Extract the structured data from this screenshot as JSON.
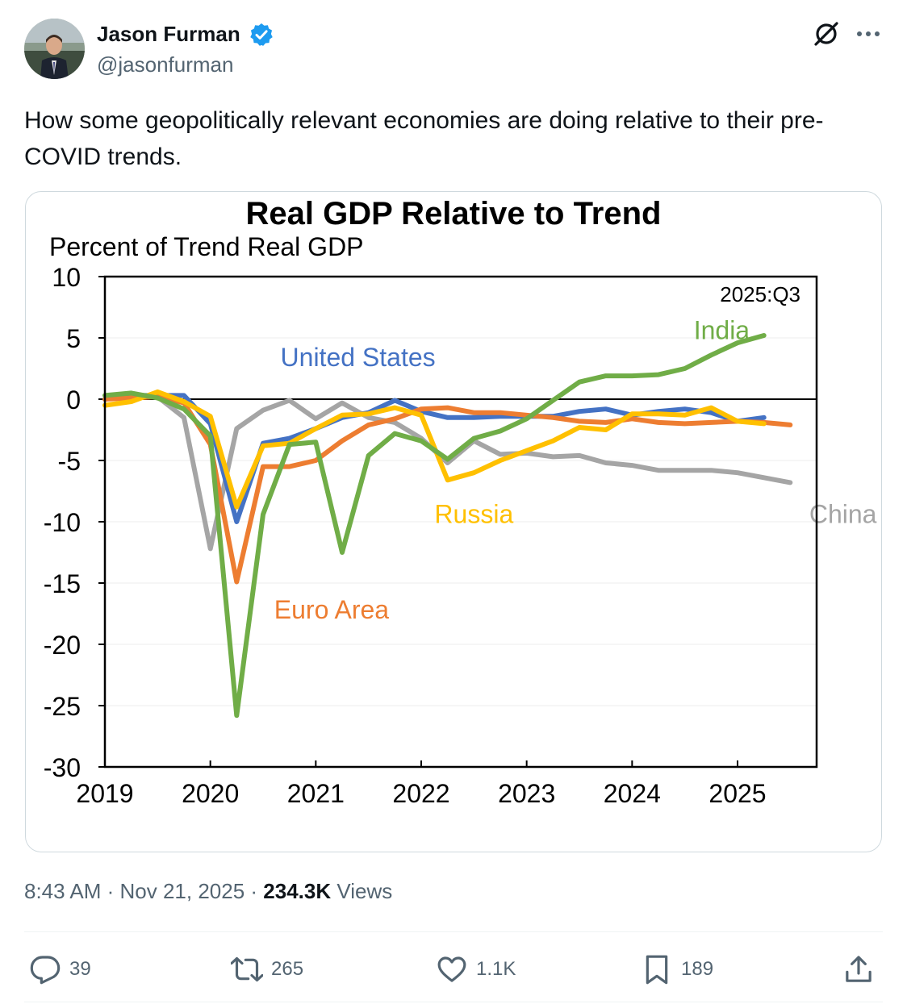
{
  "author": {
    "name": "Jason Furman",
    "handle": "@jasonfurman",
    "verified": true,
    "avatar_icon": "avatar-photo"
  },
  "header_icons": [
    "grok-icon",
    "more-icon"
  ],
  "tweet": {
    "text": "How some geopolitically relevant economies are doing relative to their pre-COVID trends."
  },
  "meta": {
    "time": "8:43 AM",
    "sep1": " · ",
    "date": "Nov 21, 2025",
    "sep2": " · ",
    "views_count": "234.3K",
    "views_label": " Views"
  },
  "actions": {
    "replies": "39",
    "reposts": "265",
    "likes": "1.1K",
    "bookmarks": "189"
  },
  "colors": {
    "link_blue": "#1d9bf0",
    "secondary_text": "#536471",
    "us": "#4472c4",
    "euro_area": "#ed7d31",
    "china": "#a5a5a5",
    "russia": "#ffc000",
    "india": "#70ad47"
  },
  "chart_data": {
    "type": "line",
    "title": "Real GDP Relative to Trend",
    "ylabel": "Percent of Trend Real GDP",
    "corner_label": "2025:Q3",
    "xlim": [
      2019,
      2025.75
    ],
    "ylim": [
      -30,
      10
    ],
    "yticks": [
      "10",
      "5",
      "0",
      "-5",
      "-10",
      "-15",
      "-20",
      "-25",
      "-30"
    ],
    "ytick_values": [
      10,
      5,
      0,
      -5,
      -10,
      -15,
      -20,
      -25,
      -30
    ],
    "xticks": [
      "2019",
      "2020",
      "2021",
      "2022",
      "2023",
      "2024",
      "2025"
    ],
    "xtick_values": [
      2019,
      2020,
      2021,
      2022,
      2023,
      2024,
      2025
    ],
    "grid": "horizontal",
    "series": [
      {
        "name": "China",
        "color": "#a5a5a5",
        "label_x": 2026.0,
        "label_y": -10.1,
        "x": [
          2019,
          2019.25,
          2019.5,
          2019.75,
          2020,
          2020.25,
          2020.5,
          2020.75,
          2021,
          2021.25,
          2021.5,
          2021.75,
          2022,
          2022.25,
          2022.5,
          2022.75,
          2023,
          2023.25,
          2023.5,
          2023.75,
          2024,
          2024.25,
          2024.5,
          2024.75,
          2025,
          2025.25,
          2025.5
        ],
        "values": [
          0,
          0.4,
          0.2,
          -1.5,
          -12.2,
          -2.4,
          -0.9,
          -0.1,
          -1.6,
          -0.3,
          -1.5,
          -1.9,
          -3.2,
          -5.2,
          -3.4,
          -4.5,
          -4.4,
          -4.7,
          -4.6,
          -5.2,
          -5.4,
          -5.8,
          -5.8,
          -5.8,
          -6.0,
          -6.4,
          -6.8
        ]
      },
      {
        "name": "United States",
        "color": "#4472c4",
        "label_x": 2021.4,
        "label_y": 2.7,
        "x": [
          2019,
          2019.25,
          2019.5,
          2019.75,
          2020,
          2020.25,
          2020.5,
          2020.75,
          2021,
          2021.25,
          2021.5,
          2021.75,
          2022,
          2022.25,
          2022.5,
          2022.75,
          2023,
          2023.25,
          2023.5,
          2023.75,
          2024,
          2024.25,
          2024.5,
          2024.75,
          2025,
          2025.25
        ],
        "values": [
          0,
          0.3,
          0.3,
          0.3,
          -2.0,
          -10.0,
          -3.6,
          -3.2,
          -2.4,
          -1.5,
          -1.1,
          -0.1,
          -1.0,
          -1.5,
          -1.5,
          -1.4,
          -1.4,
          -1.4,
          -1.0,
          -0.8,
          -1.3,
          -1.0,
          -0.8,
          -1.1,
          -1.8,
          -1.5
        ]
      },
      {
        "name": "Euro Area",
        "color": "#ed7d31",
        "label_x": 2021.15,
        "label_y": -17.9,
        "x": [
          2019,
          2019.25,
          2019.5,
          2019.75,
          2020,
          2020.25,
          2020.5,
          2020.75,
          2021,
          2021.25,
          2021.5,
          2021.75,
          2022,
          2022.25,
          2022.5,
          2022.75,
          2023,
          2023.25,
          2023.5,
          2023.75,
          2024,
          2024.25,
          2024.5,
          2024.75,
          2025,
          2025.25,
          2025.5
        ],
        "values": [
          0,
          0.1,
          0.2,
          -0.3,
          -3.7,
          -14.9,
          -5.5,
          -5.5,
          -5.0,
          -3.4,
          -2.1,
          -1.6,
          -0.8,
          -0.7,
          -1.1,
          -1.1,
          -1.3,
          -1.5,
          -1.8,
          -1.9,
          -1.6,
          -1.9,
          -2.0,
          -1.9,
          -1.8,
          -1.9,
          -2.1
        ]
      },
      {
        "name": "Russia",
        "color": "#ffc000",
        "label_x": 2022.5,
        "label_y": -10.1,
        "x": [
          2019,
          2019.25,
          2019.5,
          2019.75,
          2020,
          2020.25,
          2020.5,
          2020.75,
          2021,
          2021.25,
          2021.5,
          2021.75,
          2022,
          2022.25,
          2022.5,
          2022.75,
          2023,
          2023.25,
          2023.5,
          2023.75,
          2024,
          2024.25,
          2024.5,
          2024.75,
          2025,
          2025.25
        ],
        "values": [
          -0.5,
          -0.2,
          0.6,
          -0.2,
          -1.4,
          -8.8,
          -3.8,
          -3.6,
          -2.4,
          -1.3,
          -1.2,
          -0.7,
          -1.3,
          -6.6,
          -6.0,
          -5.0,
          -4.2,
          -3.4,
          -2.3,
          -2.5,
          -1.2,
          -1.2,
          -1.3,
          -0.7,
          -1.8,
          -2.0
        ]
      },
      {
        "name": "India",
        "color": "#70ad47",
        "label_x": 2024.85,
        "label_y": 4.9,
        "x": [
          2019,
          2019.25,
          2019.5,
          2019.75,
          2020,
          2020.25,
          2020.5,
          2020.75,
          2021,
          2021.25,
          2021.5,
          2021.75,
          2022,
          2022.25,
          2022.5,
          2022.75,
          2023,
          2023.25,
          2023.5,
          2023.75,
          2024,
          2024.25,
          2024.5,
          2024.75,
          2025,
          2025.25
        ],
        "values": [
          0.3,
          0.5,
          0.1,
          -0.8,
          -3.0,
          -25.8,
          -9.4,
          -3.7,
          -3.5,
          -12.5,
          -4.6,
          -2.8,
          -3.4,
          -4.9,
          -3.2,
          -2.6,
          -1.6,
          -0.1,
          1.4,
          1.9,
          1.9,
          2.0,
          2.5,
          3.6,
          4.6,
          5.2
        ]
      }
    ]
  }
}
